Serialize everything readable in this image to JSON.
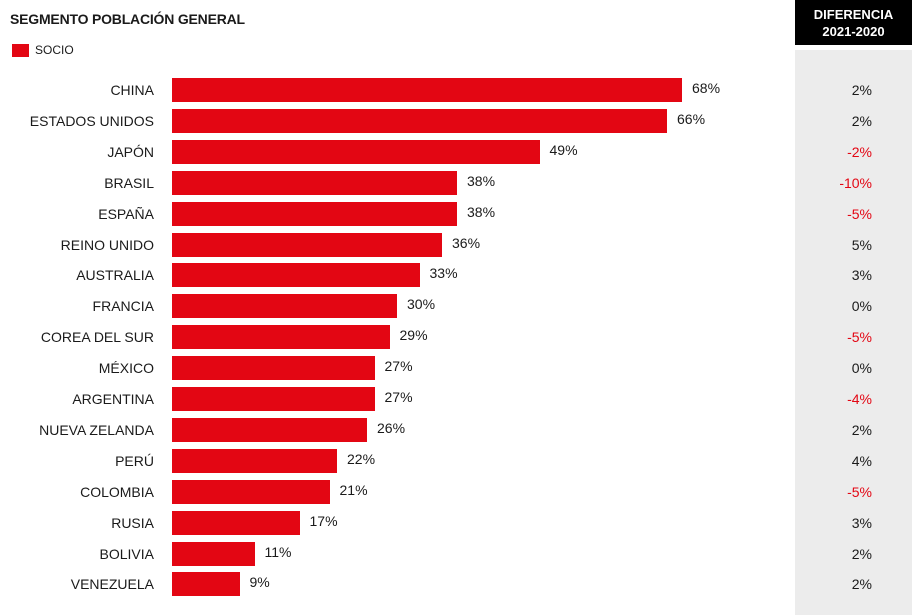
{
  "title": "SEGMENTO POBLACIÓN GENERAL",
  "legend": {
    "label": "SOCIO",
    "color": "#e30613"
  },
  "diff_header": {
    "line1": "DIFERENCIA",
    "line2": "2021-2020"
  },
  "colors": {
    "bar": "#e30613",
    "negative": "#e30613",
    "panel": "#ececec",
    "header_bg": "#000000"
  },
  "chart_data": {
    "type": "bar",
    "orientation": "horizontal",
    "title": "SEGMENTO POBLACIÓN GENERAL",
    "series": [
      {
        "name": "SOCIO",
        "values": [
          68,
          66,
          49,
          38,
          38,
          36,
          33,
          30,
          29,
          27,
          27,
          26,
          22,
          21,
          17,
          11,
          9
        ]
      }
    ],
    "categories": [
      "CHINA",
      "ESTADOS UNIDOS",
      "JAPÓN",
      "BRASIL",
      "ESPAÑA",
      "REINO UNIDO",
      "AUSTRALIA",
      "FRANCIA",
      "COREA DEL SUR",
      "MÉXICO",
      "ARGENTINA",
      "NUEVA ZELANDA",
      "PERÚ",
      "COLOMBIA",
      "RUSIA",
      "BOLIVIA",
      "VENEZUELA"
    ],
    "value_labels": [
      "68%",
      "66%",
      "49%",
      "38%",
      "38%",
      "36%",
      "33%",
      "30%",
      "29%",
      "27%",
      "27%",
      "26%",
      "22%",
      "21%",
      "17%",
      "11%",
      "9%"
    ],
    "differences": [
      "2%",
      "2%",
      "-2%",
      "-10%",
      "-5%",
      "5%",
      "3%",
      "0%",
      "-5%",
      "0%",
      "-4%",
      "2%",
      "4%",
      "-5%",
      "3%",
      "2%",
      "2%"
    ],
    "xlim": [
      0,
      100
    ],
    "grid": false
  }
}
